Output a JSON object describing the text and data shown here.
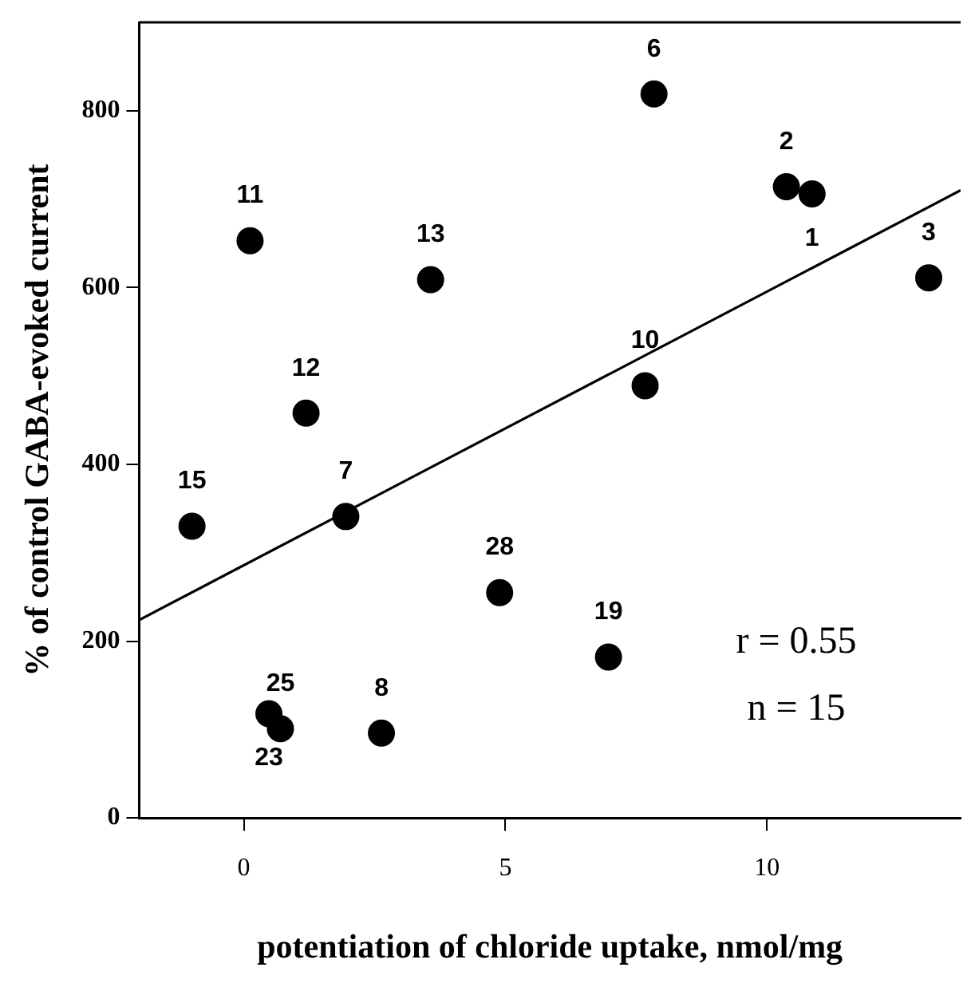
{
  "chart_data": {
    "type": "scatter",
    "xlabel": "potentiation of chloride uptake, nmol/mg",
    "ylabel": "% of control GABA-evoked current",
    "xlim": [
      -2,
      13.7
    ],
    "ylim": [
      0,
      900
    ],
    "xticks": [
      0,
      5,
      10
    ],
    "yticks": [
      0,
      200,
      400,
      600,
      800
    ],
    "grid": false,
    "legend": false,
    "marker": "circle",
    "series": [
      {
        "color": "#000000",
        "x": [
          10.86,
          10.37,
          13.09,
          7.84,
          1.95,
          2.63,
          7.67,
          0.12,
          1.19,
          3.57,
          -0.99,
          6.97,
          0.48,
          0.7,
          4.89
        ],
        "values": [
          706,
          714,
          611,
          819,
          341,
          96,
          489,
          653,
          458,
          609,
          330,
          182,
          118,
          101,
          255
        ]
      },
      {
        "type": "line",
        "color": "#000000",
        "x": [
          -2,
          13.7
        ],
        "values": [
          224,
          710
        ],
        "line_style": "solid",
        "marker": "none"
      }
    ],
    "annotations": [
      {
        "text": "1",
        "x": 10.86,
        "y": 706
      },
      {
        "text": "2",
        "x": 10.37,
        "y": 714
      },
      {
        "text": "3",
        "x": 13.09,
        "y": 611
      },
      {
        "text": "6",
        "x": 7.84,
        "y": 819
      },
      {
        "text": "7",
        "x": 1.95,
        "y": 341
      },
      {
        "text": "8",
        "x": 2.63,
        "y": 96
      },
      {
        "text": "10",
        "x": 7.67,
        "y": 489
      },
      {
        "text": "11",
        "x": 0.12,
        "y": 653
      },
      {
        "text": "12",
        "x": 1.19,
        "y": 458
      },
      {
        "text": "13",
        "x": 3.57,
        "y": 609
      },
      {
        "text": "15",
        "x": -0.99,
        "y": 330
      },
      {
        "text": "19",
        "x": 6.97,
        "y": 182
      },
      {
        "text": "23",
        "x": 0.48,
        "y": 118
      },
      {
        "text": "25",
        "x": 0.7,
        "y": 101
      },
      {
        "text": "28",
        "x": 4.89,
        "y": 255
      },
      "r = 0.55",
      "n = 15"
    ]
  }
}
